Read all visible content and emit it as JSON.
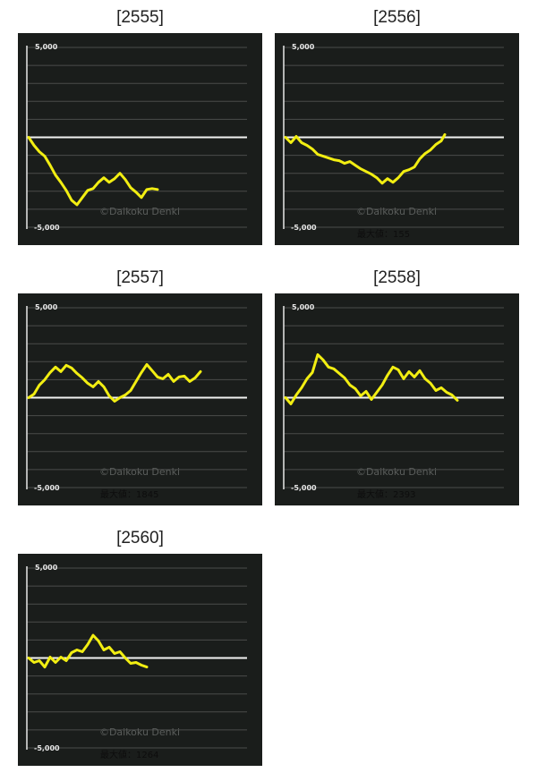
{
  "colors": {
    "page_bg": "#ffffff",
    "panel_bg": "#1a1d1b",
    "grid": "#4a4d4b",
    "axis": "#e8e8e8",
    "baseline": "#f2f2f2",
    "series": "#f2ee12",
    "label": "#e6e6e6",
    "watermark": "#5a5d5b",
    "maxlabel": "#0d0d0d"
  },
  "chart_data": [
    {
      "type": "line",
      "title": "[2555]",
      "ylim": [
        -5000,
        5000
      ],
      "y_tick_top": "5,000",
      "y_tick_bottom": "-5,000",
      "grid": true,
      "watermark": "©Daikoku Denki",
      "max_label": "",
      "series": [
        {
          "x": [
            0,
            6,
            12,
            18,
            24,
            30,
            36,
            42,
            48,
            54,
            60,
            66,
            72,
            78,
            84,
            90,
            96,
            102,
            108,
            114,
            120,
            126,
            132,
            138,
            144
          ],
          "y": [
            0,
            -450,
            -800,
            -1050,
            -1550,
            -2100,
            -2500,
            -2950,
            -3500,
            -3750,
            -3350,
            -2950,
            -2850,
            -2500,
            -2250,
            -2500,
            -2300,
            -2000,
            -2350,
            -2800,
            -3050,
            -3350,
            -2900,
            -2850,
            -2900
          ]
        }
      ]
    },
    {
      "type": "line",
      "title": "[2556]",
      "ylim": [
        -5000,
        5000
      ],
      "y_tick_top": "5,000",
      "y_tick_bottom": "-5,000",
      "grid": true,
      "watermark": "©Daikoku Denki",
      "max_label": "最大値：155",
      "series": [
        {
          "x": [
            0,
            6,
            12,
            18,
            24,
            30,
            36,
            42,
            48,
            54,
            60,
            66,
            72,
            78,
            84,
            90,
            96,
            102,
            108,
            114,
            120,
            126,
            132,
            138,
            144,
            150,
            156,
            162,
            168,
            174,
            178
          ],
          "y": [
            0,
            -300,
            50,
            -300,
            -450,
            -650,
            -950,
            -1050,
            -1150,
            -1250,
            -1300,
            -1450,
            -1350,
            -1550,
            -1750,
            -1900,
            -2050,
            -2250,
            -2550,
            -2300,
            -2500,
            -2250,
            -1900,
            -1800,
            -1650,
            -1200,
            -900,
            -700,
            -400,
            -200,
            155
          ]
        }
      ]
    },
    {
      "type": "line",
      "title": "[2557]",
      "ylim": [
        -5000,
        5000
      ],
      "y_tick_top": "5,000",
      "y_tick_bottom": "-5,000",
      "grid": true,
      "watermark": "©Daikoku Denki",
      "max_label": "最大値：1845",
      "series": [
        {
          "x": [
            0,
            6,
            12,
            18,
            24,
            30,
            36,
            42,
            48,
            54,
            60,
            66,
            72,
            78,
            84,
            90,
            96,
            102,
            108,
            114,
            120,
            126,
            132,
            138,
            144,
            150,
            156,
            162,
            168,
            174,
            180,
            186,
            192
          ],
          "y": [
            0,
            200,
            700,
            1000,
            1400,
            1700,
            1450,
            1800,
            1650,
            1350,
            1100,
            800,
            600,
            900,
            600,
            100,
            -200,
            0,
            150,
            400,
            900,
            1400,
            1845,
            1500,
            1150,
            1050,
            1300,
            900,
            1150,
            1200,
            900,
            1100,
            1450
          ]
        }
      ]
    },
    {
      "type": "line",
      "title": "[2558]",
      "ylim": [
        -5000,
        5000
      ],
      "y_tick_top": "5,000",
      "y_tick_bottom": "-5,000",
      "grid": true,
      "watermark": "©Daikoku Denki",
      "max_label": "最大値：2393",
      "series": [
        {
          "x": [
            0,
            6,
            12,
            18,
            24,
            30,
            36,
            42,
            48,
            54,
            60,
            66,
            72,
            78,
            84,
            90,
            96,
            102,
            108,
            114,
            120,
            126,
            132,
            138,
            144,
            150,
            156,
            162,
            168,
            174,
            180,
            186,
            192
          ],
          "y": [
            0,
            -350,
            150,
            550,
            1050,
            1400,
            2393,
            2100,
            1700,
            1600,
            1350,
            1100,
            700,
            500,
            100,
            350,
            -100,
            300,
            700,
            1250,
            1700,
            1550,
            1050,
            1450,
            1150,
            1500,
            1050,
            800,
            400,
            550,
            300,
            150,
            -150
          ]
        }
      ]
    },
    {
      "type": "line",
      "title": "[2560]",
      "ylim": [
        -5000,
        5000
      ],
      "y_tick_top": "5,000",
      "y_tick_bottom": "-5,000",
      "grid": true,
      "watermark": "©Daikoku Denki",
      "max_label": "最大値：1264",
      "series": [
        {
          "x": [
            0,
            6,
            12,
            18,
            24,
            30,
            36,
            42,
            48,
            54,
            60,
            66,
            72,
            78,
            84,
            90,
            96,
            102,
            108,
            114,
            120,
            126,
            132
          ],
          "y": [
            0,
            -250,
            -150,
            -500,
            50,
            -250,
            50,
            -150,
            300,
            450,
            350,
            750,
            1264,
            950,
            450,
            600,
            250,
            350,
            0,
            -300,
            -250,
            -400,
            -500
          ]
        }
      ]
    }
  ]
}
